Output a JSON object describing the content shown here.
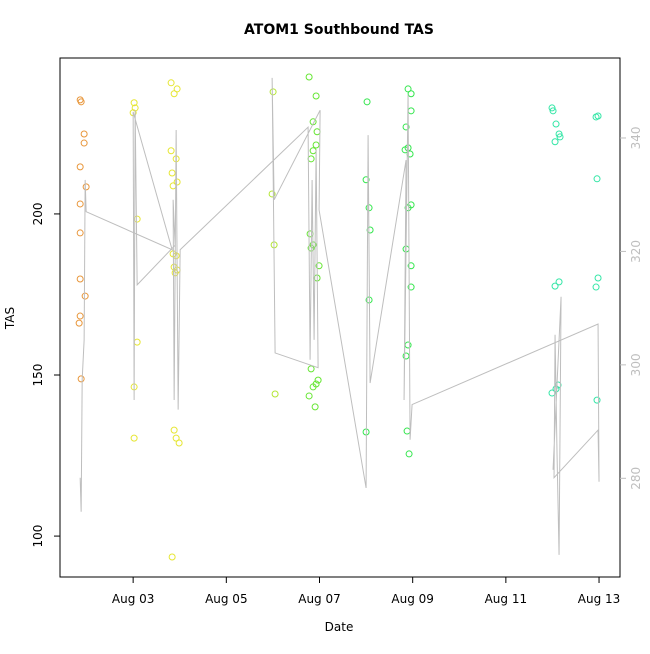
{
  "chart_data": {
    "type": "scatter",
    "title": "ATOM1 Southbound TAS",
    "x_label": "Date",
    "y_label": "TAS",
    "xlim": [
      1.43,
      13.45
    ],
    "xticks": [
      {
        "value": 3,
        "label": "Aug 03"
      },
      {
        "value": 5,
        "label": "Aug 05"
      },
      {
        "value": 7,
        "label": "Aug 07"
      },
      {
        "value": 9,
        "label": "Aug 09"
      },
      {
        "value": 11,
        "label": "Aug 11"
      },
      {
        "value": 13,
        "label": "Aug 13"
      }
    ],
    "ylim": [
      87.3,
      248.4
    ],
    "yticks": [
      100,
      150,
      200
    ],
    "y2lim": [
      262.6,
      354.1
    ],
    "y2ticks": [
      280,
      300,
      320,
      340
    ],
    "y2_color": "#bebebe",
    "series": [
      {
        "color": "#e8963a",
        "x": [
          1.863,
          1.884,
          1.948,
          1.948,
          1.863,
          1.991,
          1.863,
          1.863,
          1.863,
          1.97,
          1.863,
          1.841,
          1.884
        ],
        "values": [
          235.4,
          234.8,
          224.8,
          222,
          214.6,
          208.4,
          203.1,
          194.1,
          179.8,
          174.5,
          168.3,
          166.1,
          148.8
        ]
      },
      {
        "color": "#e6e633",
        "x": [
          3.021,
          3.043,
          3.0,
          3.086,
          3.086,
          3.021,
          3.021,
          3.815,
          3.944,
          3.88,
          3.815,
          3.923,
          3.837,
          3.944,
          3.858,
          3.858,
          3.923,
          3.88,
          3.944,
          3.901,
          3.88,
          3.923,
          3.987,
          3.837
        ],
        "values": [
          234.5,
          232.9,
          231.4,
          198.4,
          160.2,
          146.3,
          130.4,
          240.7,
          238.8,
          237.3,
          219.6,
          217.1,
          212.7,
          209.9,
          208.7,
          187.6,
          187,
          183.5,
          182.6,
          181.7,
          132.9,
          130.4,
          128.9,
          93.5
        ]
      },
      {
        "color": "#b3e633",
        "x": [
          6.004,
          5.983,
          6.026,
          6.047
        ],
        "values": [
          237.9,
          206.2,
          190.4,
          144.1
        ]
      },
      {
        "color": "#66e633",
        "x": [
          6.777,
          6.927,
          6.863,
          6.948,
          6.927,
          6.863,
          6.82,
          6.798,
          6.863,
          6.82,
          6.991,
          6.948,
          6.82,
          6.97,
          6.927,
          6.863,
          6.777,
          6.906
        ],
        "values": [
          242.5,
          236.6,
          228.6,
          225.5,
          221.4,
          219.6,
          217.1,
          193.8,
          190.4,
          189.4,
          183.9,
          180.1,
          151.9,
          148.4,
          147.2,
          146.3,
          143.5,
          140.1
        ]
      },
      {
        "color": "#33e64d",
        "x": [
          8.021,
          8.0,
          8.064,
          8.086,
          8.064,
          8.0,
          8.901,
          8.966,
          8.966,
          8.858,
          8.901,
          8.837,
          8.944,
          8.966,
          8.901,
          8.858,
          8.966,
          8.966,
          8.901,
          8.858,
          8.88,
          8.923
        ],
        "values": [
          234.8,
          210.6,
          201.9,
          195,
          173.3,
          132.3,
          238.8,
          237.3,
          232,
          227,
          220.5,
          219.9,
          218.6,
          202.8,
          201.9,
          189.1,
          183.9,
          177.3,
          159.3,
          155.9,
          132.6,
          125.5
        ]
      },
      {
        "color": "#33e6a6",
        "x": [
          11.991,
          12.013,
          12.077,
          12.142,
          12.163,
          12.056,
          12.142,
          12.056,
          12.12,
          12.077,
          11.991,
          12.936,
          12.979,
          12.957,
          12.979,
          12.936,
          12.957
        ],
        "values": [
          232.9,
          232,
          227.9,
          224.8,
          223.9,
          222.4,
          178.9,
          177.6,
          146.9,
          145.7,
          144.4,
          230.1,
          230.4,
          210.9,
          180.1,
          177.3,
          142.2
        ]
      },
      {
        "color": "#bebebe",
        "kind": "line",
        "axis": "y2",
        "x": [
          1.863,
          1.884,
          1.906,
          1.948,
          1.97,
          1.991,
          3.837,
          3.0,
          3.021,
          3.043,
          3.086,
          3.901,
          3.858,
          3.88,
          3.923,
          3.966,
          4.009,
          6.755,
          6.798,
          6.841,
          6.884,
          6.927,
          6.97,
          6.047,
          5.983,
          6.026,
          7.013,
          6.991,
          8.0,
          8.043,
          8.086,
          8.858,
          8.815,
          8.901,
          8.944,
          8.987,
          12.979,
          13.0,
          12.979,
          12.034,
          12.056,
          12.099,
          12.142,
          12.185,
          12.013
        ],
        "values": [
          280.1,
          274.1,
          297.4,
          304.4,
          332.6,
          327.0,
          320.3,
          344.6,
          293.8,
          344.9,
          314.1,
          321.1,
          329.1,
          293.8,
          341.4,
          292.1,
          320.3,
          341.9,
          300.9,
          332.6,
          304.4,
          337.9,
          299.5,
          302.1,
          350.6,
          329.1,
          344.9,
          327.3,
          278.3,
          340.5,
          296.8,
          336.1,
          293.8,
          347.6,
          286.8,
          293.0,
          307.2,
          279.4,
          288.5,
          280.1,
          305.3,
          284.1,
          266.5,
          312.0,
          281.5
        ]
      }
    ]
  }
}
